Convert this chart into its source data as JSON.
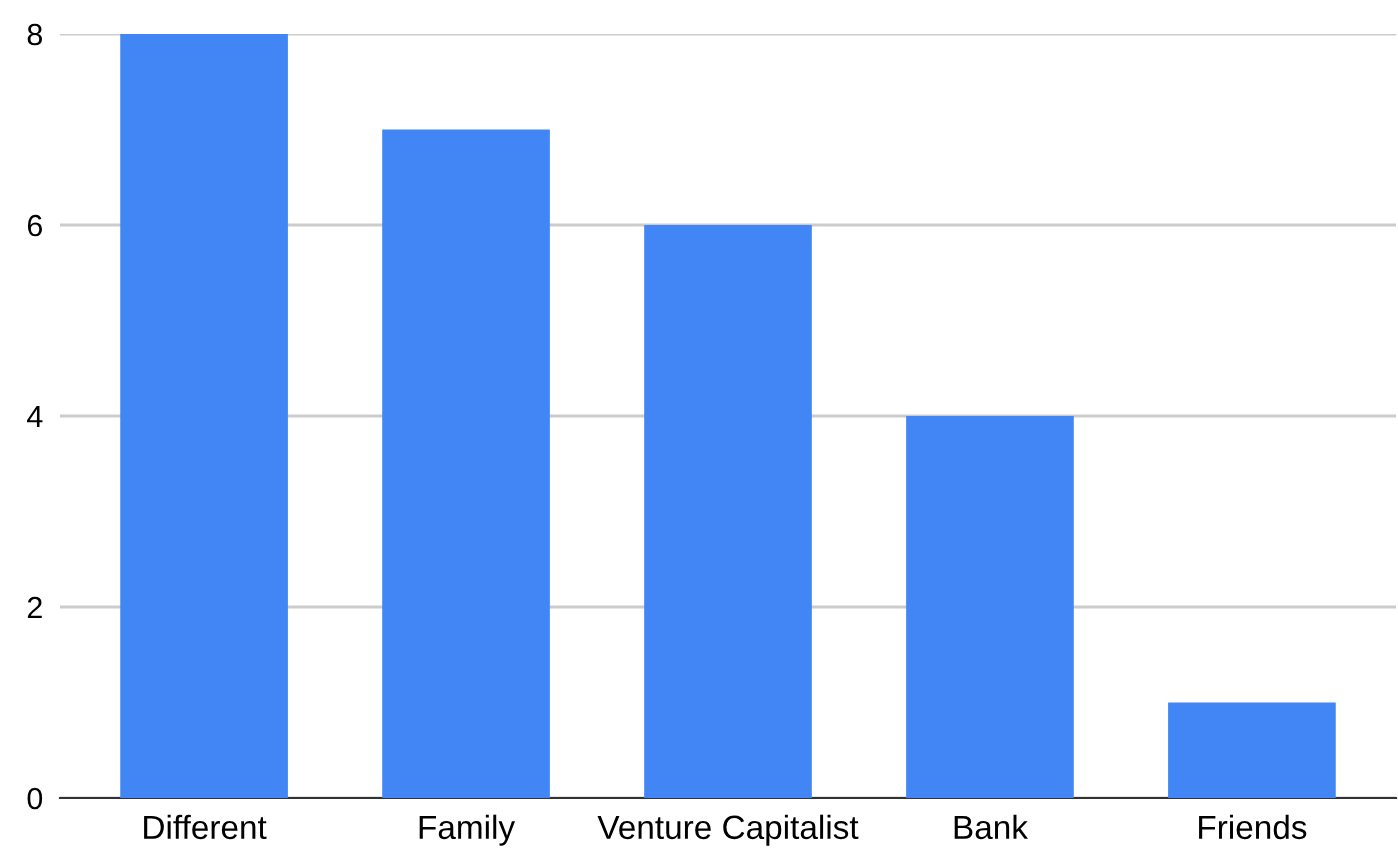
{
  "chart_data": {
    "type": "bar",
    "categories": [
      "Different",
      "Family",
      "Venture Capitalist",
      "Bank",
      "Friends"
    ],
    "values": [
      8,
      7,
      6,
      4,
      1
    ],
    "color": "#4285f4",
    "ylim": [
      0,
      8
    ],
    "yticks": [
      0,
      2,
      4,
      6,
      8
    ],
    "grid": "y",
    "legend": false
  }
}
